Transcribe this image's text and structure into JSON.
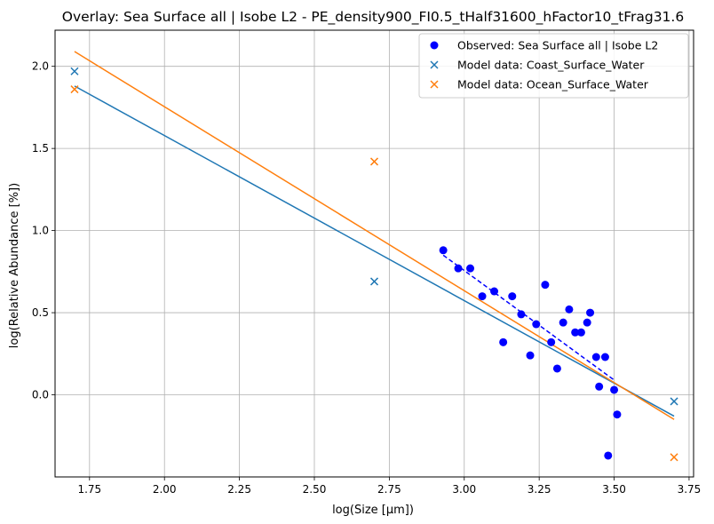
{
  "chart_data": {
    "type": "scatter",
    "title": "Overlay: Sea Surface all | Isobe L2 - PE_density900_FI0.5_tHalf31600_hFactor10_tFrag31.6",
    "xlabel": "log(Size [µm])",
    "ylabel": "log(Relative Abundance [%])",
    "xlim": [
      1.635,
      3.765
    ],
    "ylim": [
      -0.5,
      2.22
    ],
    "x_ticks": [
      "1.75",
      "2.00",
      "2.25",
      "2.50",
      "2.75",
      "3.00",
      "3.25",
      "3.50",
      "3.75"
    ],
    "y_ticks": [
      "0.0",
      "0.5",
      "1.0",
      "1.5",
      "2.0"
    ],
    "grid": true,
    "legend_position": "top-right",
    "colors": {
      "observed": "#0000ff",
      "coast": "#1f77b4",
      "ocean": "#ff7f0e"
    },
    "observed": {
      "name": "Observed: Sea Surface all | Isobe L2",
      "marker": "circle",
      "points": [
        [
          2.93,
          0.88
        ],
        [
          2.98,
          0.77
        ],
        [
          3.02,
          0.77
        ],
        [
          3.06,
          0.6
        ],
        [
          3.1,
          0.63
        ],
        [
          3.13,
          0.32
        ],
        [
          3.16,
          0.6
        ],
        [
          3.19,
          0.49
        ],
        [
          3.22,
          0.24
        ],
        [
          3.24,
          0.43
        ],
        [
          3.27,
          0.67
        ],
        [
          3.29,
          0.32
        ],
        [
          3.31,
          0.16
        ],
        [
          3.33,
          0.44
        ],
        [
          3.35,
          0.52
        ],
        [
          3.37,
          0.38
        ],
        [
          3.39,
          0.38
        ],
        [
          3.41,
          0.44
        ],
        [
          3.42,
          0.5
        ],
        [
          3.44,
          0.23
        ],
        [
          3.45,
          0.05
        ],
        [
          3.47,
          0.23
        ],
        [
          3.48,
          -0.37
        ],
        [
          3.5,
          0.03
        ],
        [
          3.51,
          -0.12
        ]
      ],
      "fit": [
        [
          2.93,
          0.85
        ],
        [
          3.5,
          0.09
        ]
      ]
    },
    "series": [
      {
        "name": "Model data: Coast_Surface_Water",
        "marker": "x",
        "points": [
          [
            1.7,
            1.97
          ],
          [
            2.7,
            0.69
          ],
          [
            3.7,
            -0.04
          ]
        ],
        "fit": [
          [
            1.7,
            1.88
          ],
          [
            3.7,
            -0.13
          ]
        ]
      },
      {
        "name": "Model data: Ocean_Surface_Water",
        "marker": "x",
        "points": [
          [
            1.7,
            1.86
          ],
          [
            2.7,
            1.42
          ],
          [
            3.7,
            -0.38
          ]
        ],
        "fit": [
          [
            1.7,
            2.09
          ],
          [
            3.7,
            -0.15
          ]
        ]
      }
    ]
  }
}
